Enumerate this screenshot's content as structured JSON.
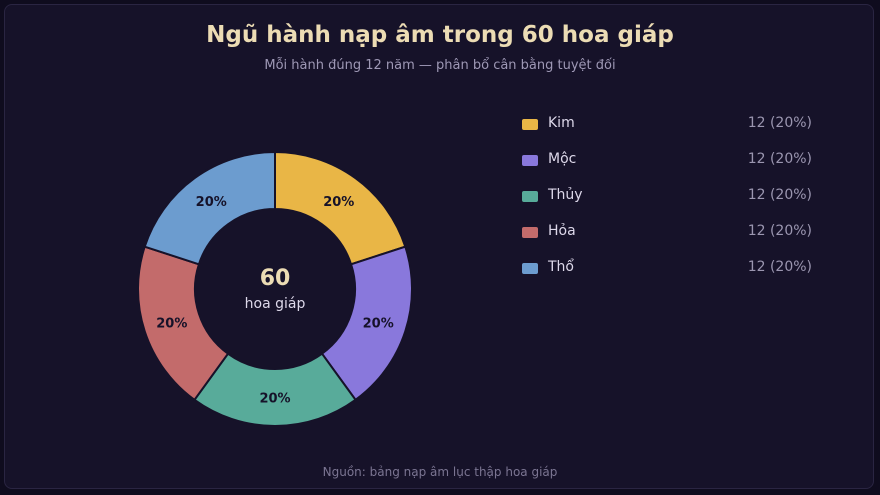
{
  "chart_data": {
    "type": "pie",
    "variant": "donut",
    "title": "Ngũ hành nạp âm trong 60 hoa giáp",
    "subtitle": "Mỗi hành đúng 12 năm — phân bổ cân bằng tuyệt đối",
    "center_value": "60",
    "center_label": "hoa giáp",
    "categories": [
      "Kim",
      "Mộc",
      "Thủy",
      "Hỏa",
      "Thổ"
    ],
    "values": [
      12,
      12,
      12,
      12,
      12
    ],
    "slice_labels": [
      "20%",
      "20%",
      "20%",
      "20%",
      "20%"
    ],
    "legend_values": [
      "12 (20%)",
      "12 (20%)",
      "12 (20%)",
      "12 (20%)",
      "12 (20%)"
    ],
    "colors": [
      "#e9b646",
      "#8978dc",
      "#58ab9a",
      "#c36b6b",
      "#6c9ccf"
    ],
    "legend_position": "right",
    "source": "Nguồn: bảng nạp âm lục thập hoa giáp"
  }
}
